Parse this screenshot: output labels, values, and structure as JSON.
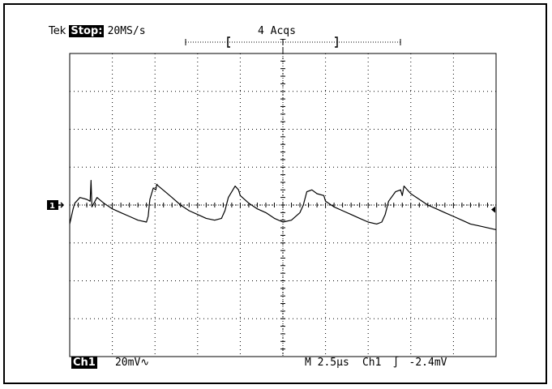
{
  "header": {
    "brand": "Tek",
    "mode": "Stop:",
    "sample_rate": "20MS/s",
    "acquisitions": "4 Acqs",
    "trigger_marker": "T"
  },
  "footer": {
    "channel": "Ch1",
    "volts_per_div": "20mV",
    "coupling_symbol": "∿",
    "timebase": "M 2.5µs",
    "trigger_source": "Ch1",
    "trigger_slope_symbol": "∫",
    "trigger_level": "-2.4mV"
  },
  "markers": {
    "ground_ref": "1"
  },
  "chart_data": {
    "type": "line",
    "title": "",
    "xlabel": "",
    "ylabel": "",
    "x_unit": "µs",
    "y_unit": "mV",
    "xlim": [
      0,
      25
    ],
    "ylim": [
      -80,
      80
    ],
    "x_divisions": 10,
    "y_divisions": 8,
    "grid": "dotted",
    "series": [
      {
        "x": [
          0,
          0.2,
          0.3,
          0.6,
          1.0,
          1.2,
          1.25,
          1.3,
          1.6,
          2.0,
          2.5,
          3.0,
          3.5,
          4.0,
          4.5,
          4.6,
          4.7,
          4.9,
          5.05,
          5.1,
          5.2,
          5.6,
          6.0,
          6.5,
          7.0,
          7.5,
          8.0,
          8.5,
          8.9,
          9.1,
          9.3,
          9.7,
          9.9,
          10.0,
          10.5,
          11.0,
          11.5,
          12.0,
          12.5,
          13.0,
          13.5,
          13.7,
          13.9,
          14.2,
          14.5,
          14.9,
          15.0,
          15.5,
          16.0,
          16.5,
          17.0,
          17.5,
          18.0,
          18.3,
          18.5,
          18.7,
          19.1,
          19.4,
          19.5,
          19.6,
          20.0,
          20.5,
          21.0,
          21.5,
          22.0,
          22.5,
          23.0,
          23.5,
          24.0,
          24.5,
          25.0
        ],
        "y": [
          -10,
          -2,
          1,
          4,
          3,
          2,
          13,
          -1,
          4,
          1,
          -2,
          -4,
          -6,
          -8,
          -9,
          -6,
          3,
          9,
          8,
          11,
          10,
          7,
          4,
          0,
          -3,
          -5,
          -7,
          -8,
          -7,
          -3,
          4,
          10,
          8,
          5,
          1,
          -2,
          -4,
          -7,
          -9,
          -8,
          -4,
          0,
          7,
          8,
          6,
          5,
          2,
          -1,
          -3,
          -5,
          -7,
          -9,
          -10,
          -9,
          -5,
          2,
          7,
          8,
          5,
          10,
          6,
          3,
          0,
          -2,
          -4,
          -6,
          -8,
          -10,
          -11,
          -12,
          -13
        ]
      }
    ]
  }
}
